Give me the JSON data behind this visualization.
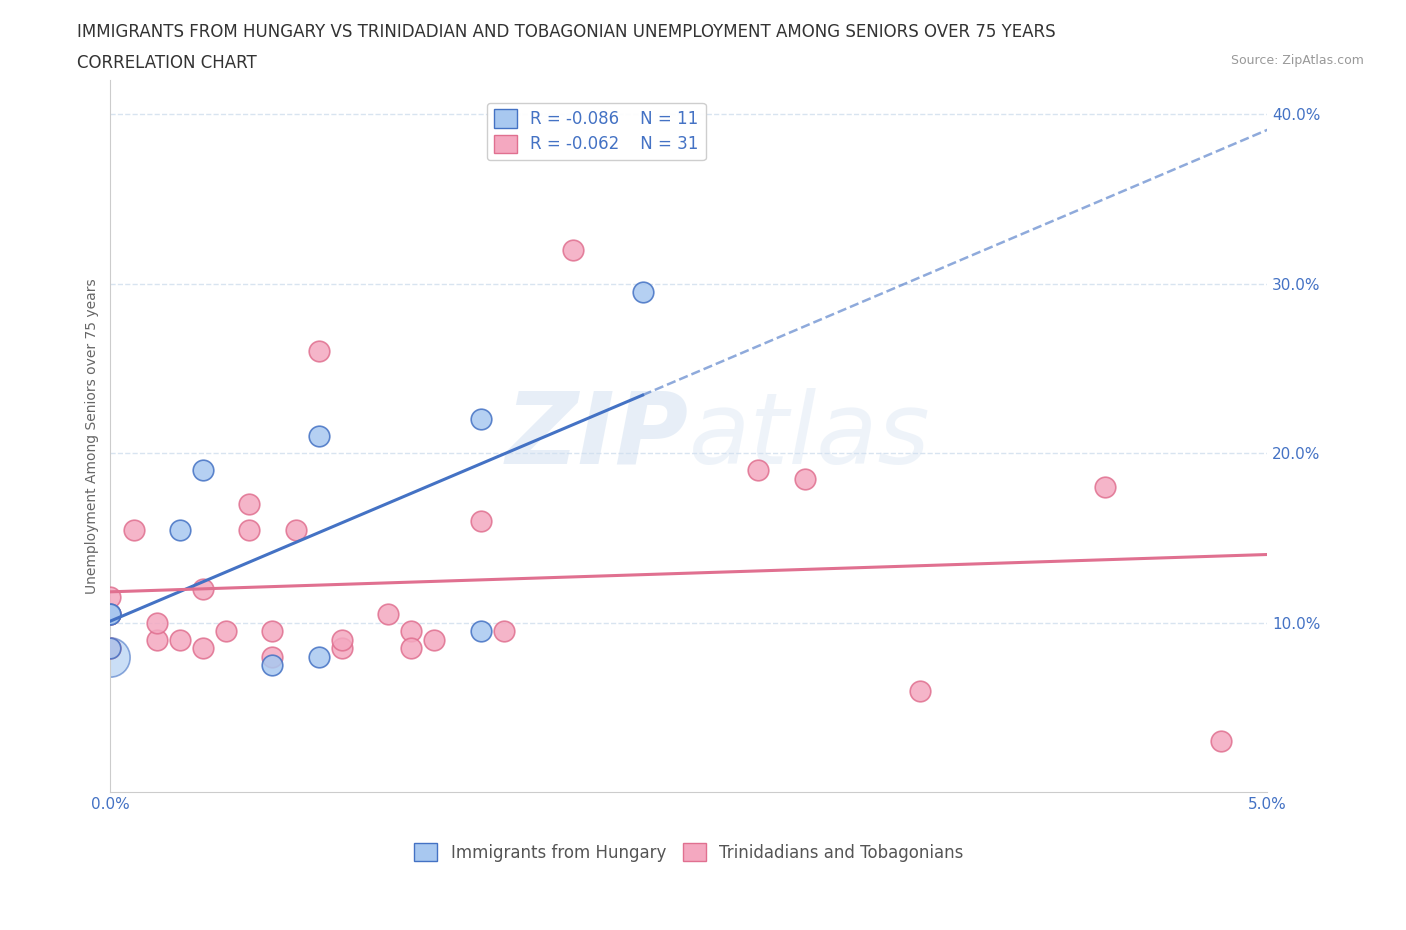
{
  "title_line1": "IMMIGRANTS FROM HUNGARY VS TRINIDADIAN AND TOBAGONIAN UNEMPLOYMENT AMONG SENIORS OVER 75 YEARS",
  "title_line2": "CORRELATION CHART",
  "source_text": "Source: ZipAtlas.com",
  "ylabel": "Unemployment Among Seniors over 75 years",
  "xlim": [
    0.0,
    0.05
  ],
  "ylim": [
    0.0,
    0.42
  ],
  "x_ticks": [
    0.0,
    0.01,
    0.02,
    0.03,
    0.04,
    0.05
  ],
  "x_tick_labels": [
    "0.0%",
    "",
    "",
    "",
    "",
    "5.0%"
  ],
  "y_ticks": [
    0.1,
    0.2,
    0.3,
    0.4
  ],
  "y_tick_labels": [
    "10.0%",
    "20.0%",
    "30.0%",
    "40.0%"
  ],
  "watermark": "ZIPatlas",
  "legend_r_hungary": "-0.086",
  "legend_n_hungary": "11",
  "legend_r_tt": "-0.062",
  "legend_n_tt": "31",
  "hungary_color": "#a8c8f0",
  "tt_color": "#f4a8c0",
  "hungary_line_color": "#4472c4",
  "tt_line_color": "#e07090",
  "scatter_hungary_x": [
    0.0,
    0.0,
    0.0,
    0.003,
    0.004,
    0.007,
    0.009,
    0.009,
    0.016,
    0.016,
    0.023
  ],
  "scatter_hungary_y": [
    0.085,
    0.105,
    0.105,
    0.155,
    0.19,
    0.075,
    0.08,
    0.21,
    0.095,
    0.22,
    0.295
  ],
  "scatter_tt_x": [
    0.0,
    0.0,
    0.0,
    0.0,
    0.001,
    0.002,
    0.002,
    0.003,
    0.004,
    0.004,
    0.005,
    0.006,
    0.006,
    0.007,
    0.007,
    0.008,
    0.009,
    0.01,
    0.01,
    0.012,
    0.013,
    0.013,
    0.014,
    0.016,
    0.017,
    0.02,
    0.028,
    0.03,
    0.035,
    0.043,
    0.048
  ],
  "scatter_tt_y": [
    0.085,
    0.105,
    0.105,
    0.115,
    0.155,
    0.09,
    0.1,
    0.09,
    0.085,
    0.12,
    0.095,
    0.155,
    0.17,
    0.095,
    0.08,
    0.155,
    0.26,
    0.085,
    0.09,
    0.105,
    0.095,
    0.085,
    0.09,
    0.16,
    0.095,
    0.32,
    0.19,
    0.185,
    0.06,
    0.18,
    0.03
  ],
  "background_color": "#ffffff",
  "grid_color": "#d8e4f0",
  "title_fontsize": 12,
  "subtitle_fontsize": 12,
  "axis_label_fontsize": 10,
  "tick_fontsize": 11,
  "legend_fontsize": 12
}
